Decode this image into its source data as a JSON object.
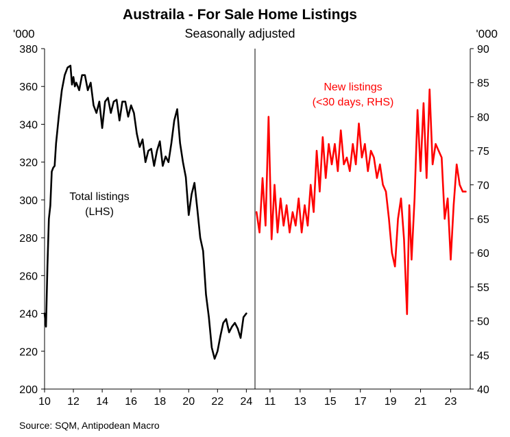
{
  "chart_data": [
    {
      "type": "line",
      "title": "Austraila - For Sale Home Listings",
      "subtitle": "Seasonally adjusted",
      "source": "Source: SQM, Antipodean Macro",
      "yunit": "'000",
      "xlabel": "",
      "ylabel": "",
      "grid": false,
      "ylim": [
        200,
        380
      ],
      "yticks": [
        200,
        220,
        240,
        260,
        280,
        300,
        320,
        340,
        360,
        380
      ],
      "xlim": [
        2010,
        2024.6
      ],
      "xticks": [
        10,
        12,
        14,
        16,
        18,
        20,
        22,
        24
      ],
      "series": [
        {
          "name": "Total listings",
          "label_lines": [
            "Total listings",
            "(LHS)"
          ],
          "color": "#000000",
          "x": [
            2010.0,
            2010.1,
            2010.2,
            2010.3,
            2010.4,
            2010.5,
            2010.6,
            2010.7,
            2010.8,
            2011.0,
            2011.2,
            2011.4,
            2011.6,
            2011.8,
            2011.9,
            2012.0,
            2012.1,
            2012.2,
            2012.4,
            2012.6,
            2012.8,
            2013.0,
            2013.2,
            2013.4,
            2013.6,
            2013.8,
            2014.0,
            2014.2,
            2014.4,
            2014.6,
            2014.8,
            2015.0,
            2015.2,
            2015.4,
            2015.6,
            2015.8,
            2016.0,
            2016.2,
            2016.4,
            2016.6,
            2016.8,
            2017.0,
            2017.2,
            2017.4,
            2017.6,
            2017.8,
            2018.0,
            2018.2,
            2018.4,
            2018.6,
            2018.8,
            2019.0,
            2019.2,
            2019.4,
            2019.6,
            2019.8,
            2020.0,
            2020.2,
            2020.4,
            2020.6,
            2020.8,
            2021.0,
            2021.2,
            2021.4,
            2021.6,
            2021.8,
            2022.0,
            2022.2,
            2022.4,
            2022.6,
            2022.8,
            2023.0,
            2023.2,
            2023.4,
            2023.6,
            2023.8,
            2024.0
          ],
          "values": [
            240,
            233,
            265,
            290,
            297,
            315,
            317,
            318,
            330,
            345,
            358,
            366,
            370,
            371,
            361,
            365,
            360,
            362,
            358,
            366,
            366,
            358,
            362,
            350,
            346,
            352,
            338,
            352,
            354,
            346,
            352,
            353,
            342,
            352,
            352,
            344,
            350,
            346,
            335,
            328,
            332,
            320,
            326,
            327,
            318,
            326,
            331,
            318,
            323,
            320,
            330,
            342,
            348,
            330,
            320,
            312,
            292,
            303,
            309,
            295,
            280,
            273,
            250,
            238,
            222,
            216,
            220,
            228,
            235,
            237,
            230,
            233,
            235,
            232,
            227,
            238,
            240
          ]
        }
      ]
    },
    {
      "type": "line",
      "yunit": "'000",
      "xlabel": "",
      "ylabel": "",
      "grid": false,
      "ylim": [
        40,
        90
      ],
      "yticks": [
        40,
        45,
        50,
        55,
        60,
        65,
        70,
        75,
        80,
        85,
        90
      ],
      "xlim": [
        2010.0,
        2024.3
      ],
      "xticks": [
        11,
        13,
        15,
        17,
        19,
        21,
        23
      ],
      "series": [
        {
          "name": "New listings",
          "label_lines": [
            "New listings",
            "(<30 days, RHS)"
          ],
          "color": "#ff0000",
          "x": [
            2010.1,
            2010.3,
            2010.5,
            2010.7,
            2010.9,
            2011.1,
            2011.3,
            2011.5,
            2011.7,
            2011.9,
            2012.1,
            2012.3,
            2012.5,
            2012.7,
            2012.9,
            2013.1,
            2013.3,
            2013.5,
            2013.7,
            2013.9,
            2014.1,
            2014.3,
            2014.5,
            2014.7,
            2014.9,
            2015.1,
            2015.3,
            2015.5,
            2015.7,
            2015.9,
            2016.1,
            2016.3,
            2016.5,
            2016.7,
            2016.9,
            2017.1,
            2017.3,
            2017.5,
            2017.7,
            2017.9,
            2018.1,
            2018.3,
            2018.5,
            2018.7,
            2018.9,
            2019.1,
            2019.3,
            2019.5,
            2019.7,
            2019.9,
            2020.1,
            2020.25,
            2020.4,
            2020.6,
            2020.8,
            2021.0,
            2021.2,
            2021.4,
            2021.6,
            2021.8,
            2022.0,
            2022.2,
            2022.4,
            2022.6,
            2022.8,
            2023.0,
            2023.2,
            2023.4,
            2023.6,
            2023.8,
            2024.0
          ],
          "values": [
            66,
            63,
            71,
            64,
            80,
            62,
            70,
            63,
            68,
            64,
            67,
            63,
            66,
            64,
            68,
            63,
            67,
            64,
            70,
            66,
            75,
            69,
            77,
            71,
            76,
            73,
            76,
            72,
            78,
            73,
            74,
            72,
            76,
            73,
            79,
            74,
            76,
            72,
            75,
            74,
            71,
            73,
            70,
            69,
            65,
            60,
            58,
            65,
            68,
            62,
            51,
            67,
            59,
            68,
            81,
            72,
            82,
            71,
            84,
            73,
            76,
            75,
            74,
            65,
            68,
            59,
            67,
            73,
            70,
            69,
            69
          ]
        }
      ]
    }
  ]
}
